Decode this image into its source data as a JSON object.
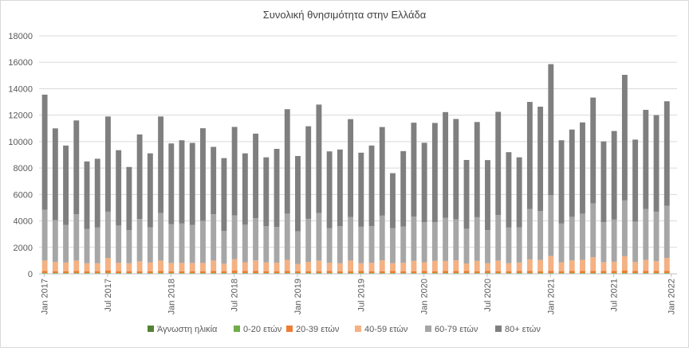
{
  "chart_data": {
    "type": "bar",
    "stacked": true,
    "title": "Συνολική θνησιμότητα στην Ελλάδα",
    "xlabel": "",
    "ylabel": "",
    "ylim": [
      0,
      18000
    ],
    "yticks": [
      0,
      2000,
      4000,
      6000,
      8000,
      10000,
      12000,
      14000,
      16000,
      18000
    ],
    "grid": true,
    "legend_position": "bottom",
    "x_tick_labels": [
      {
        "index": 0,
        "label": "Jan 2017"
      },
      {
        "index": 6,
        "label": "Jul 2017"
      },
      {
        "index": 12,
        "label": "Jan 2018"
      },
      {
        "index": 18,
        "label": "Jul 2018"
      },
      {
        "index": 24,
        "label": "Jan 2019"
      },
      {
        "index": 30,
        "label": "Jul 2019"
      },
      {
        "index": 36,
        "label": "Jan 2020"
      },
      {
        "index": 42,
        "label": "Jul 2020"
      },
      {
        "index": 48,
        "label": "Jan 2021"
      },
      {
        "index": 54,
        "label": "Jul 2021"
      },
      {
        "index": 60,
        "label": "Jan 2022"
      }
    ],
    "categories": [
      "Jan 2017",
      "Feb 2017",
      "Mar 2017",
      "Apr 2017",
      "May 2017",
      "Jun 2017",
      "Jul 2017",
      "Aug 2017",
      "Sep 2017",
      "Oct 2017",
      "Nov 2017",
      "Dec 2017",
      "Jan 2018",
      "Feb 2018",
      "Mar 2018",
      "Apr 2018",
      "May 2018",
      "Jun 2018",
      "Jul 2018",
      "Aug 2018",
      "Sep 2018",
      "Oct 2018",
      "Nov 2018",
      "Dec 2018",
      "Jan 2019",
      "Feb 2019",
      "Mar 2019",
      "Apr 2019",
      "May 2019",
      "Jun 2019",
      "Jul 2019",
      "Aug 2019",
      "Sep 2019",
      "Oct 2019",
      "Nov 2019",
      "Dec 2019",
      "Jan 2020",
      "Feb 2020",
      "Mar 2020",
      "Apr 2020",
      "May 2020",
      "Jun 2020",
      "Jul 2020",
      "Aug 2020",
      "Sep 2020",
      "Oct 2020",
      "Nov 2020",
      "Dec 2020",
      "Jan 2021",
      "Feb 2021",
      "Mar 2021",
      "Apr 2021",
      "May 2021",
      "Jun 2021",
      "Jul 2021",
      "Aug 2021",
      "Sep 2021",
      "Oct 2021",
      "Nov 2021",
      "Dec 2021"
    ],
    "series": [
      {
        "name": "Άγνωστη ηλικία",
        "color": "#548235",
        "values": [
          10,
          10,
          10,
          10,
          10,
          10,
          10,
          10,
          10,
          10,
          10,
          10,
          10,
          10,
          10,
          10,
          10,
          10,
          10,
          10,
          10,
          10,
          10,
          10,
          10,
          10,
          10,
          10,
          10,
          10,
          10,
          10,
          10,
          10,
          10,
          10,
          10,
          10,
          10,
          10,
          10,
          10,
          10,
          10,
          10,
          10,
          10,
          10,
          10,
          10,
          10,
          10,
          10,
          10,
          10,
          10,
          10,
          10,
          10,
          10
        ]
      },
      {
        "name": "0-20 ετών",
        "color": "#70ad47",
        "values": [
          50,
          50,
          50,
          50,
          50,
          50,
          50,
          50,
          50,
          50,
          50,
          50,
          50,
          50,
          50,
          50,
          50,
          50,
          50,
          50,
          50,
          50,
          50,
          50,
          50,
          50,
          50,
          50,
          50,
          50,
          50,
          50,
          50,
          50,
          50,
          50,
          50,
          50,
          50,
          50,
          50,
          50,
          50,
          50,
          50,
          50,
          50,
          50,
          50,
          50,
          50,
          50,
          50,
          50,
          50,
          50,
          50,
          50,
          50,
          50
        ]
      },
      {
        "name": "20-39 ετών",
        "color": "#ed7d31",
        "values": [
          150,
          140,
          140,
          150,
          140,
          140,
          200,
          140,
          140,
          140,
          140,
          150,
          140,
          140,
          140,
          140,
          150,
          140,
          180,
          150,
          150,
          140,
          140,
          150,
          140,
          140,
          140,
          150,
          140,
          140,
          150,
          140,
          140,
          150,
          140,
          140,
          150,
          140,
          150,
          150,
          150,
          140,
          150,
          140,
          140,
          150,
          150,
          140,
          170,
          140,
          150,
          150,
          170,
          150,
          150,
          180,
          150,
          150,
          150,
          150
        ]
      },
      {
        "name": "40-59 ετών",
        "color": "#f4b183",
        "values": [
          790,
          700,
          650,
          790,
          600,
          600,
          940,
          630,
          600,
          740,
          650,
          790,
          620,
          620,
          620,
          620,
          790,
          560,
          870,
          660,
          800,
          660,
          640,
          840,
          550,
          700,
          800,
          630,
          600,
          800,
          590,
          640,
          820,
          590,
          630,
          780,
          660,
          780,
          760,
          800,
          570,
          780,
          590,
          800,
          600,
          640,
          880,
          840,
          1120,
          670,
          800,
          840,
          1030,
          670,
          700,
          1090,
          690,
          840,
          740,
          990
        ]
      },
      {
        "name": "60-79 ετών",
        "color": "#a6a6a6",
        "values": [
          3850,
          3150,
          2850,
          3500,
          2600,
          2700,
          3500,
          2820,
          2500,
          3200,
          2660,
          3600,
          2940,
          2980,
          2880,
          3190,
          3500,
          2490,
          3300,
          2840,
          3190,
          2750,
          2710,
          3500,
          2460,
          3260,
          3600,
          2620,
          2800,
          3300,
          2760,
          2760,
          3380,
          2650,
          2750,
          3350,
          3040,
          2930,
          3260,
          3100,
          2630,
          3300,
          2500,
          3450,
          2700,
          2660,
          3810,
          3700,
          4610,
          2930,
          3300,
          3500,
          4070,
          3030,
          3190,
          4220,
          3050,
          3850,
          3750,
          3950
        ]
      },
      {
        "name": "80+ ετών",
        "color": "#7f7f7f",
        "values": [
          8700,
          6950,
          6000,
          7100,
          5100,
          5200,
          7200,
          5700,
          4780,
          6400,
          5600,
          7300,
          6100,
          6300,
          6200,
          7000,
          5100,
          5500,
          6700,
          5400,
          6400,
          5200,
          5900,
          7900,
          5700,
          7000,
          8200,
          5800,
          5800,
          7400,
          5600,
          6100,
          6700,
          4160,
          5700,
          7100,
          6000,
          7500,
          8000,
          7600,
          5200,
          7200,
          5300,
          7800,
          5700,
          5300,
          8100,
          7900,
          9900,
          6300,
          6600,
          6900,
          8000,
          6100,
          6700,
          9500,
          6200,
          7500,
          7300,
          7900
        ]
      }
    ]
  }
}
